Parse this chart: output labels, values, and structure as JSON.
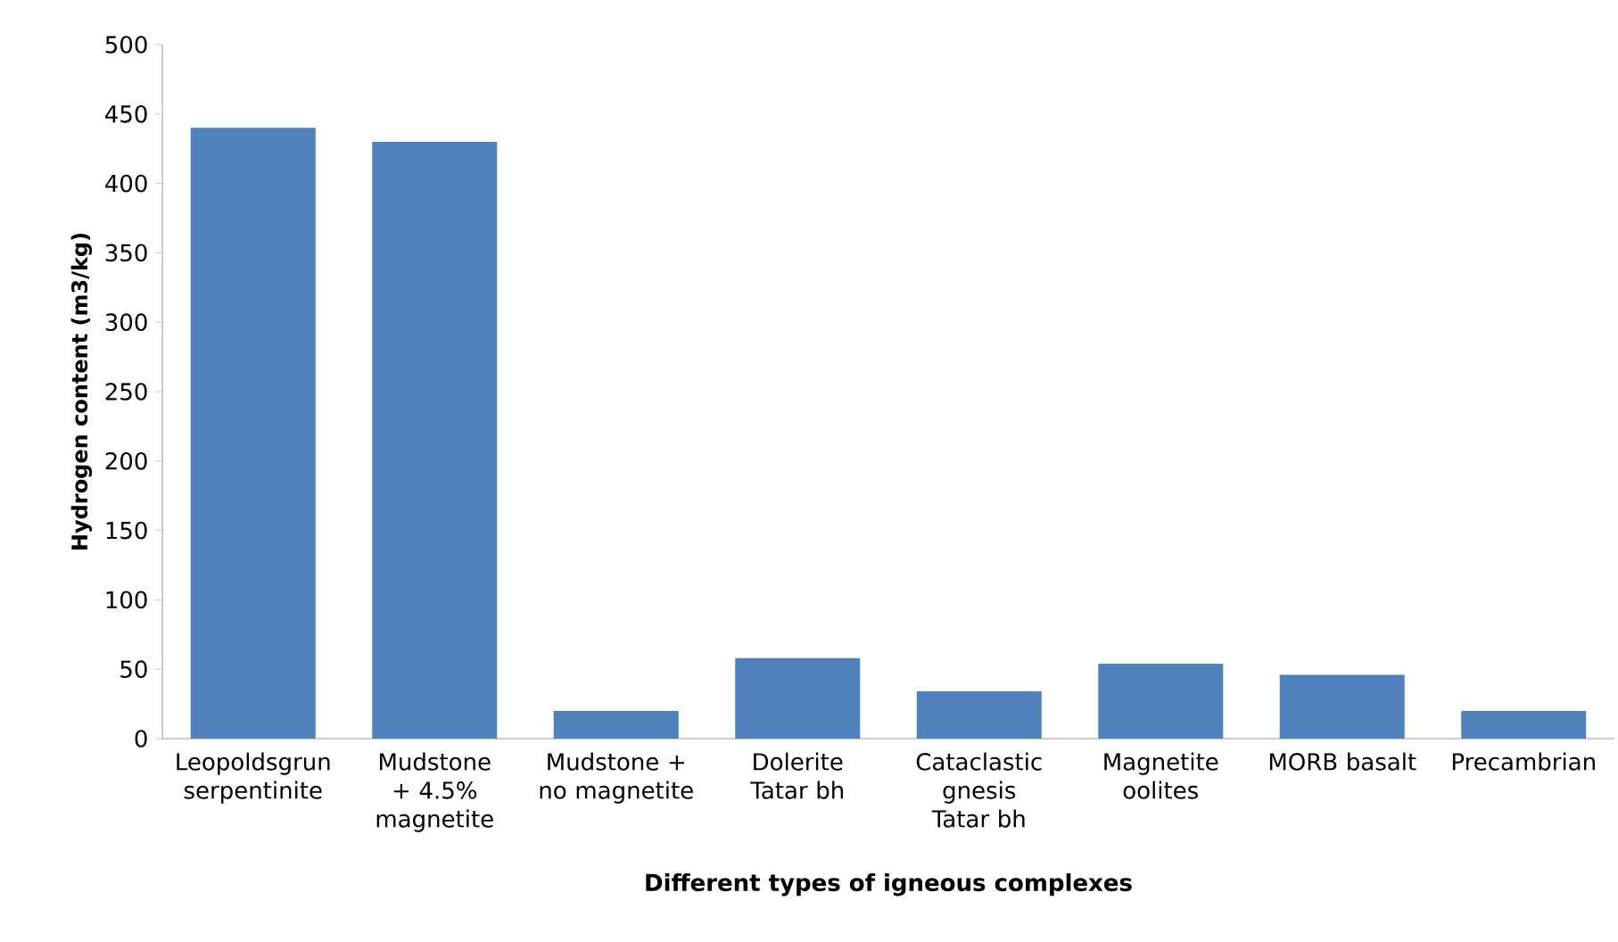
{
  "chart_data": {
    "type": "bar",
    "xlabel": "Different types of igneous complexes",
    "ylabel": "Hydrogen content (m3/kg)",
    "categories": [
      "Leopoldsgrun serpentinite",
      "Mudstone + 4.5% magnetite",
      "Mudstone + no magnetite",
      "Dolerite Tatar bh",
      "Cataclastic gnesis Tatar  bh",
      "Magnetite oolites",
      "MORB basalt",
      "Precambrian"
    ],
    "values": [
      440,
      430,
      20,
      58,
      34,
      54,
      46,
      20
    ],
    "color": "#4f81bd",
    "ylim": [
      0,
      500
    ],
    "yticks": [
      0,
      50,
      100,
      150,
      200,
      250,
      300,
      350,
      400,
      450,
      500
    ],
    "grid": false
  }
}
